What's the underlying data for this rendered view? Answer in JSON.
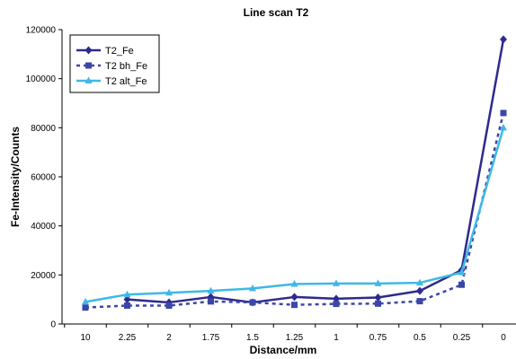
{
  "chart_data": {
    "type": "line",
    "title": "Line scan T2",
    "xlabel": "Distance/mm",
    "ylabel": "Fe-Intensity/Counts",
    "categories": [
      "10",
      "2.25",
      "2",
      "1.75",
      "1.5",
      "1.25",
      "1",
      "0.75",
      "0.5",
      "0.25",
      "0"
    ],
    "ylim": [
      0,
      120000
    ],
    "yticks": [
      0,
      20000,
      40000,
      60000,
      80000,
      100000,
      120000
    ],
    "ytick_labels": [
      "0",
      "20000",
      "40000",
      "60000",
      "80000",
      "100000",
      "120000"
    ],
    "legend_position": "top-left",
    "grid": false,
    "series": [
      {
        "name": "T2_Fe",
        "color": "#2e2a8c",
        "marker": "diamond",
        "dash": "solid",
        "values": [
          null,
          10000,
          8800,
          11000,
          8800,
          11000,
          10300,
          10800,
          13500,
          22000,
          116000
        ]
      },
      {
        "name": "T2 bh_Fe",
        "color": "#3b46a8",
        "marker": "square",
        "dash": "dotted",
        "values": [
          6700,
          7500,
          7500,
          9200,
          8800,
          7800,
          8200,
          8300,
          9300,
          16000,
          86000
        ]
      },
      {
        "name": "T2 alt_Fe",
        "color": "#3fb8e6",
        "marker": "triangle",
        "dash": "solid",
        "values": [
          9000,
          12000,
          12700,
          13500,
          14500,
          16300,
          16500,
          16500,
          16800,
          21000,
          80000
        ]
      }
    ]
  }
}
